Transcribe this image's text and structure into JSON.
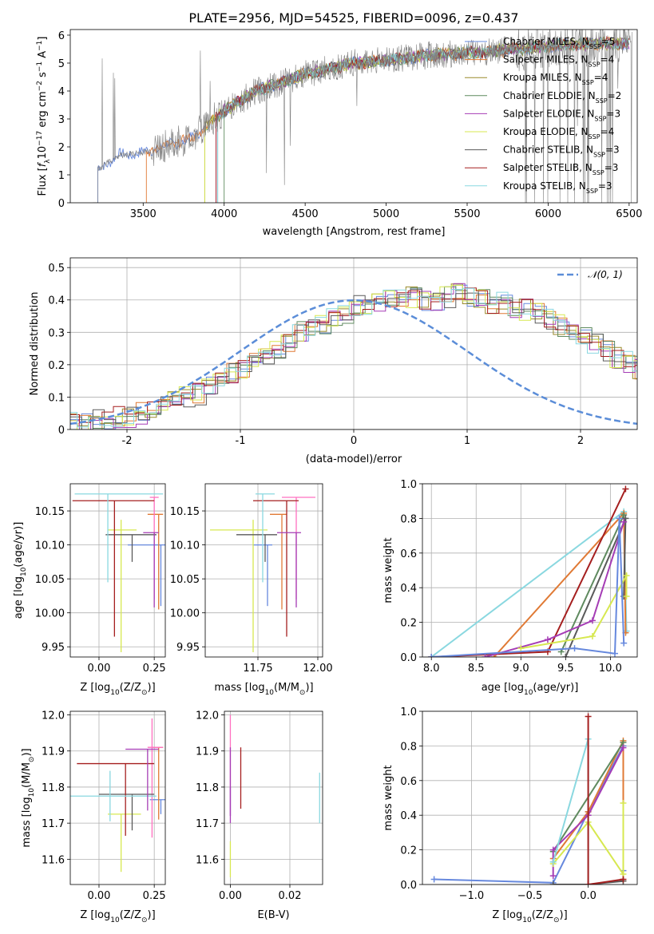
{
  "chart_data": [
    {
      "id": "spectrum",
      "type": "line",
      "title": "PLATE=2956, MJD=54525, FIBERID=0096, z=0.437",
      "xlabel": "wavelength [Angstrom, rest frame]",
      "ylabel_parts": [
        "Flux [",
        "f",
        "λ",
        "10",
        "−17",
        " erg cm",
        "−2",
        " s",
        "−1",
        " A",
        "−1",
        "]"
      ],
      "xlim": [
        3050,
        6550
      ],
      "ylim": [
        0,
        6.2
      ],
      "xticks": [
        3500,
        4000,
        4500,
        5000,
        5500,
        6000,
        6500
      ],
      "yticks": [
        0,
        1,
        2,
        3,
        4,
        5,
        6
      ],
      "grid": false,
      "legend_position": "top-right",
      "legend": [
        {
          "pre": "Chabrier MILES, N",
          "sub": "SSP",
          "post": "=5",
          "color": "#6688dd"
        },
        {
          "pre": "Salpeter MILES, N",
          "sub": "SSP",
          "post": "=4",
          "color": "#e07a35"
        },
        {
          "pre": "Kroupa MILES, N",
          "sub": "SSP",
          "post": "=4",
          "color": "#9a8a2a"
        },
        {
          "pre": "Chabrier ELODIE, N",
          "sub": "SSP",
          "post": "=2",
          "color": "#5f8a5f"
        },
        {
          "pre": "Salpeter ELODIE, N",
          "sub": "SSP",
          "post": "=3",
          "color": "#a53cb5"
        },
        {
          "pre": "Kroupa ELODIE, N",
          "sub": "SSP",
          "post": "=4",
          "color": "#d7e850"
        },
        {
          "pre": "Chabrier STELIB, N",
          "sub": "SSP",
          "post": "=3",
          "color": "#5a5a5a"
        },
        {
          "pre": "Salpeter STELIB, N",
          "sub": "SSP",
          "post": "=3",
          "color": "#a51f1f"
        },
        {
          "pre": "Kroupa STELIB, N",
          "sub": "SSP",
          "post": "=3",
          "color": "#8ad8e0"
        }
      ],
      "data_color": "#808080",
      "data_start": 3220,
      "continuum": [
        [
          3220,
          1.2
        ],
        [
          3350,
          1.7
        ],
        [
          3500,
          1.8
        ],
        [
          3800,
          2.3
        ],
        [
          4000,
          3.3
        ],
        [
          4200,
          4.0
        ],
        [
          4500,
          4.6
        ],
        [
          4800,
          5.0
        ],
        [
          5000,
          5.1
        ],
        [
          5300,
          5.3
        ],
        [
          5600,
          5.4
        ],
        [
          6000,
          5.6
        ],
        [
          6300,
          5.7
        ]
      ],
      "model_starts": [
        3220,
        3520,
        3880,
        4000,
        3950,
        3880,
        3960,
        3950,
        3960
      ]
    },
    {
      "id": "residuals",
      "type": "histogram",
      "xlabel": "(data-model)/error",
      "ylabel": "Normed distribution",
      "xlim": [
        -2.5,
        2.5
      ],
      "ylim": [
        0,
        0.53
      ],
      "xticks": [
        -2,
        -1,
        0,
        1,
        2
      ],
      "yticks": [
        0.0,
        0.1,
        0.2,
        0.3,
        0.4,
        0.5
      ],
      "grid": true,
      "legend_position": "top-right",
      "legend_label": "𝒩(0, 1)",
      "gaussian_color": "#5b8dd8",
      "bin_width": 0.1,
      "base_profile": [
        0.02,
        0.02,
        0.03,
        0.03,
        0.04,
        0.04,
        0.05,
        0.06,
        0.08,
        0.09,
        0.1,
        0.11,
        0.13,
        0.15,
        0.17,
        0.19,
        0.21,
        0.23,
        0.25,
        0.27,
        0.3,
        0.31,
        0.33,
        0.35,
        0.36,
        0.38,
        0.39,
        0.4,
        0.4,
        0.41,
        0.41,
        0.4,
        0.4,
        0.41,
        0.42,
        0.41,
        0.4,
        0.39,
        0.39,
        0.38,
        0.37,
        0.36,
        0.34,
        0.32,
        0.3,
        0.28,
        0.26,
        0.24,
        0.22,
        0.21,
        0.19,
        0.18,
        0.17,
        0.15,
        0.14,
        0.13,
        0.12,
        0.11,
        0.1,
        0.09,
        0.08,
        0.08,
        0.07,
        0.06,
        0.06,
        0.05,
        0.05,
        0.04,
        0.04,
        0.04
      ]
    },
    {
      "id": "age-vs-Z",
      "type": "scatter",
      "xlabel_parts": [
        "Z [log",
        "10",
        "(Z/Z",
        "⊙",
        ")]"
      ],
      "ylabel_parts": [
        "age  [log",
        "10",
        "(age/yr)]"
      ],
      "xlim": [
        -0.13,
        0.3
      ],
      "ylim": [
        9.935,
        10.19
      ],
      "xticks": [
        "0.00",
        "0.25"
      ],
      "yticks": [
        "9.95",
        "10.00",
        "10.05",
        "10.10",
        "10.15"
      ],
      "points": [
        {
          "x": 0.28,
          "y": 10.1,
          "xerr": [
            0.15,
            0.02
          ],
          "yerr": [
            0.09,
            0.0
          ],
          "color": "#6688dd"
        },
        {
          "x": 0.27,
          "y": 10.145,
          "xerr": [
            0.05,
            0.02
          ],
          "yerr": [
            0.14,
            0.0
          ],
          "color": "#e07a35"
        },
        {
          "x": 0.25,
          "y": 10.17,
          "xerr": [
            0.02,
            0.02
          ],
          "yerr": [
            0.15,
            0.0
          ],
          "color": "#ff70c0"
        },
        {
          "x": 0.1,
          "y": 10.122,
          "xerr": [
            0.06,
            0.07
          ],
          "yerr": [
            0.18,
            0.015
          ],
          "color": "#d7e850"
        },
        {
          "x": 0.15,
          "y": 10.115,
          "xerr": [
            0.12,
            0.11
          ],
          "yerr": [
            0.04,
            0.0
          ],
          "color": "#5a5a5a"
        },
        {
          "x": 0.07,
          "y": 10.165,
          "xerr": [
            0.19,
            0.18
          ],
          "yerr": [
            0.2,
            0.0
          ],
          "color": "#a51f1f"
        },
        {
          "x": 0.04,
          "y": 10.175,
          "xerr": [
            0.15,
            0.25
          ],
          "yerr": [
            0.13,
            0.0
          ],
          "color": "#8ad8e0"
        },
        {
          "x": 0.25,
          "y": 10.118,
          "xerr": [
            0.05,
            0.02
          ],
          "yerr": [
            0.11,
            0.0
          ],
          "color": "#a53cb5"
        }
      ]
    },
    {
      "id": "age-vs-mass",
      "type": "scatter",
      "xlabel_parts": [
        "mass [log",
        "10",
        "(M/M",
        "⊙",
        ")]"
      ],
      "ylabel_parts": [],
      "xlim": [
        11.53,
        12.02
      ],
      "ylim": [
        9.935,
        10.19
      ],
      "xticks": [
        "11.75",
        "12.00"
      ],
      "yticks": [
        "9.95",
        "10.00",
        "10.05",
        "10.10",
        "10.15"
      ],
      "points": [
        {
          "x": 11.79,
          "y": 10.1,
          "xerr": [
            0.06,
            0.02
          ],
          "yerr": [
            0.09,
            0.0
          ],
          "color": "#6688dd"
        },
        {
          "x": 11.85,
          "y": 10.145,
          "xerr": [
            0.05,
            0.02
          ],
          "yerr": [
            0.14,
            0.0
          ],
          "color": "#e07a35"
        },
        {
          "x": 11.91,
          "y": 10.17,
          "xerr": [
            0.06,
            0.08
          ],
          "yerr": [
            0.15,
            0.0
          ],
          "color": "#ff70c0"
        },
        {
          "x": 11.73,
          "y": 10.122,
          "xerr": [
            0.18,
            0.06
          ],
          "yerr": [
            0.18,
            0.015
          ],
          "color": "#d7e850"
        },
        {
          "x": 11.78,
          "y": 10.115,
          "xerr": [
            0.12,
            0.05
          ],
          "yerr": [
            0.04,
            0.0
          ],
          "color": "#5a5a5a"
        },
        {
          "x": 11.87,
          "y": 10.165,
          "xerr": [
            0.14,
            0.05
          ],
          "yerr": [
            0.2,
            0.0
          ],
          "color": "#a51f1f"
        },
        {
          "x": 11.77,
          "y": 10.175,
          "xerr": [
            0.03,
            0.05
          ],
          "yerr": [
            0.13,
            0.0
          ],
          "color": "#8ad8e0"
        },
        {
          "x": 11.91,
          "y": 10.118,
          "xerr": [
            0.08,
            0.02
          ],
          "yerr": [
            0.11,
            0.0
          ],
          "color": "#a53cb5"
        }
      ]
    },
    {
      "id": "weight-vs-age",
      "type": "line",
      "xlabel_parts": [
        "age  [log",
        "10",
        "(age/yr)]"
      ],
      "ylabel": "mass weight",
      "xlim": [
        7.9,
        10.3
      ],
      "ylim": [
        0,
        1.0
      ],
      "xticks": [
        "8.0",
        "8.5",
        "9.0",
        "9.5",
        "10.0"
      ],
      "yticks": [
        "0.0",
        "0.2",
        "0.4",
        "0.6",
        "0.8",
        "1.0"
      ],
      "grid": true,
      "series": [
        {
          "color": "#8ad8e0",
          "points": [
            [
              8.0,
              0.0
            ],
            [
              10.15,
              0.84
            ],
            [
              10.18,
              0.15
            ]
          ]
        },
        {
          "color": "#e07a35",
          "points": [
            [
              8.7,
              0.0
            ],
            [
              10.15,
              0.83
            ],
            [
              10.17,
              0.14
            ]
          ]
        },
        {
          "color": "#5f8a5f",
          "points": [
            [
              9.45,
              0.03
            ],
            [
              10.15,
              0.82
            ]
          ]
        },
        {
          "color": "#5a5a5a",
          "points": [
            [
              9.5,
              0.0
            ],
            [
              10.17,
              0.8
            ],
            [
              10.15,
              0.35
            ]
          ]
        },
        {
          "color": "#a51f1f",
          "points": [
            [
              8.0,
              0.0
            ],
            [
              9.3,
              0.03
            ],
            [
              10.17,
              0.97
            ]
          ]
        },
        {
          "color": "#a53cb5",
          "points": [
            [
              8.6,
              0.0
            ],
            [
              9.3,
              0.1
            ],
            [
              9.8,
              0.21
            ],
            [
              10.15,
              0.78
            ]
          ]
        },
        {
          "color": "#d7e850",
          "points": [
            [
              9.0,
              0.05
            ],
            [
              9.8,
              0.12
            ],
            [
              10.18,
              0.47
            ],
            [
              10.18,
              0.35
            ]
          ]
        },
        {
          "color": "#6688dd",
          "points": [
            [
              8.0,
              0.0
            ],
            [
              9.6,
              0.05
            ],
            [
              10.05,
              0.02
            ],
            [
              10.1,
              0.8
            ],
            [
              10.15,
              0.08
            ]
          ]
        }
      ]
    },
    {
      "id": "mass-vs-Z",
      "type": "scatter",
      "xlabel_parts": [
        "Z [log",
        "10",
        "(Z/Z",
        "⊙",
        ")]"
      ],
      "ylabel_parts": [
        "mass [log",
        "10",
        "(M/M",
        "⊙",
        ")]"
      ],
      "xlim": [
        -0.13,
        0.3
      ],
      "ylim": [
        11.53,
        12.01
      ],
      "xticks": [
        "0.00",
        "0.25"
      ],
      "yticks": [
        "11.6",
        "11.7",
        "11.8",
        "11.9",
        "12.0"
      ],
      "points": [
        {
          "x": 0.28,
          "y": 11.765,
          "xerr": [
            0.05,
            0.02
          ],
          "yerr": [
            0.04,
            0.0
          ],
          "color": "#6688dd"
        },
        {
          "x": 0.27,
          "y": 11.91,
          "xerr": [
            0.03,
            0.02
          ],
          "yerr": [
            0.2,
            0.0
          ],
          "color": "#e07a35"
        },
        {
          "x": 0.24,
          "y": 11.91,
          "xerr": [
            0.02,
            0.05
          ],
          "yerr": [
            0.25,
            0.08
          ],
          "color": "#ff70c0"
        },
        {
          "x": 0.1,
          "y": 11.725,
          "xerr": [
            0.06,
            0.09
          ],
          "yerr": [
            0.16,
            0.0
          ],
          "color": "#d7e850"
        },
        {
          "x": 0.15,
          "y": 11.78,
          "xerr": [
            0.15,
            0.1
          ],
          "yerr": [
            0.1,
            0.0
          ],
          "color": "#5a5a5a"
        },
        {
          "x": 0.12,
          "y": 11.865,
          "xerr": [
            0.22,
            0.13
          ],
          "yerr": [
            0.2,
            0.0
          ],
          "color": "#a51f1f"
        },
        {
          "x": 0.05,
          "y": 11.775,
          "xerr": [
            0.2,
            0.21
          ],
          "yerr": [
            0.07,
            0.07
          ],
          "color": "#8ad8e0"
        },
        {
          "x": 0.22,
          "y": 11.905,
          "xerr": [
            0.1,
            0.05
          ],
          "yerr": [
            0.17,
            0.0
          ],
          "color": "#a53cb5"
        }
      ]
    },
    {
      "id": "mass-vs-EBV",
      "type": "scatter",
      "xlabel": "E(B-V)",
      "ylabel_parts": [],
      "xlim": [
        -0.002,
        0.031
      ],
      "ylim": [
        11.53,
        12.01
      ],
      "xticks": [
        "0.00",
        "0.02"
      ],
      "yticks": [
        "11.6",
        "11.7",
        "11.8",
        "11.9",
        "12.0"
      ],
      "points": [
        {
          "x": 0.0,
          "y": 11.76,
          "xerr": [
            0,
            0
          ],
          "yerr": [
            0.04,
            0.04
          ],
          "color": "#6688dd"
        },
        {
          "x": 0.0,
          "y": 11.92,
          "xerr": [
            0,
            0
          ],
          "yerr": [
            0.2,
            0.08
          ],
          "color": "#ff70c0"
        },
        {
          "x": 0.0,
          "y": 11.65,
          "xerr": [
            0,
            0
          ],
          "yerr": [
            0.1,
            0.0
          ],
          "color": "#d7e850"
        },
        {
          "x": 0.0,
          "y": 11.8,
          "xerr": [
            0,
            0
          ],
          "yerr": [
            0.1,
            0.11
          ],
          "color": "#a53cb5"
        },
        {
          "x": 0.0035,
          "y": 11.85,
          "xerr": [
            0,
            0
          ],
          "yerr": [
            0.11,
            0.06
          ],
          "color": "#a51f1f"
        },
        {
          "x": 0.03,
          "y": 11.77,
          "xerr": [
            0,
            0
          ],
          "yerr": [
            0.07,
            0.07
          ],
          "color": "#8ad8e0"
        }
      ]
    },
    {
      "id": "weight-vs-Z",
      "type": "line",
      "xlabel_parts": [
        "Z [log",
        "10",
        "(Z/Z",
        "⊙",
        ")]"
      ],
      "ylabel": "mass weight",
      "xlim": [
        -1.42,
        0.42
      ],
      "ylim": [
        0,
        1.0
      ],
      "xticks": [
        "−1.0",
        "−0.5",
        "0.0"
      ],
      "xtick_values": [
        -1.0,
        -0.5,
        0.0
      ],
      "yticks": [
        "0.0",
        "0.2",
        "0.4",
        "0.6",
        "0.8",
        "1.0"
      ],
      "grid": true,
      "series": [
        {
          "color": "#6688dd",
          "points": [
            [
              -1.32,
              0.03
            ],
            [
              -0.3,
              0.01
            ],
            [
              0.0,
              0.42
            ],
            [
              0.3,
              0.8
            ],
            [
              0.3,
              0.08
            ]
          ]
        },
        {
          "color": "#e07a35",
          "points": [
            [
              -0.3,
              0.15
            ],
            [
              0.0,
              0.42
            ],
            [
              0.3,
              0.83
            ],
            [
              0.3,
              0.02
            ]
          ]
        },
        {
          "color": "#5f8a5f",
          "points": [
            [
              -0.3,
              0.19
            ],
            [
              0.3,
              0.82
            ]
          ]
        },
        {
          "color": "#a53cb5",
          "points": [
            [
              -0.3,
              0.05
            ],
            [
              -0.3,
              0.2
            ],
            [
              0.0,
              0.4
            ],
            [
              0.3,
              0.79
            ]
          ]
        },
        {
          "color": "#d7e850",
          "points": [
            [
              -0.3,
              0.12
            ],
            [
              0.0,
              0.36
            ],
            [
              0.3,
              0.06
            ],
            [
              0.3,
              0.47
            ]
          ]
        },
        {
          "color": "#8ad8e0",
          "points": [
            [
              -0.3,
              0.13
            ],
            [
              0.0,
              0.84
            ],
            [
              0.0,
              0.0
            ]
          ]
        },
        {
          "color": "#5a5a5a",
          "points": [
            [
              -0.3,
              0.0
            ],
            [
              0.0,
              0.0
            ],
            [
              0.3,
              0.02
            ]
          ]
        },
        {
          "color": "#a51f1f",
          "points": [
            [
              0.0,
              0.97
            ],
            [
              0.0,
              0.0
            ],
            [
              0.3,
              0.03
            ]
          ]
        }
      ]
    }
  ]
}
